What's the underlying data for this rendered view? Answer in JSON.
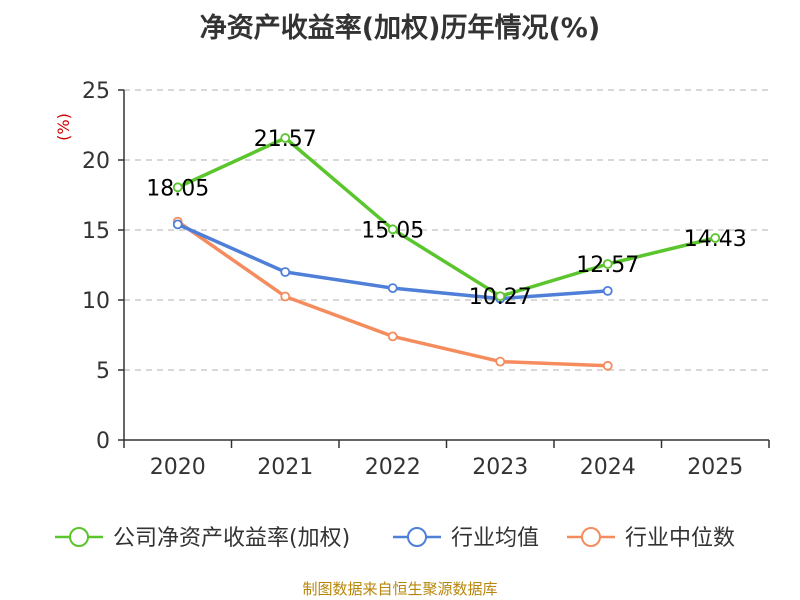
{
  "chart_data": {
    "type": "line",
    "title": "净资产收益率(加权)历年情况(%)",
    "ylabel": "(%)",
    "xlabel": "",
    "categories": [
      "2020",
      "2021",
      "2022",
      "2023",
      "2024",
      "2025"
    ],
    "ylim": [
      0,
      25
    ],
    "yticks": [
      0,
      5,
      10,
      15,
      20,
      25
    ],
    "grid": true,
    "legend_position": "bottom",
    "series": [
      {
        "name": "公司净资产收益率(加权)",
        "color": "#5ac52c",
        "values": [
          18.05,
          21.57,
          15.05,
          10.27,
          12.57,
          14.43
        ],
        "labels": [
          "18.05",
          "21.57",
          "15.05",
          "10.27",
          "12.57",
          "14.43"
        ]
      },
      {
        "name": "行业均值",
        "color": "#4f7fd8",
        "values": [
          15.4,
          12.0,
          10.85,
          10.1,
          10.65,
          null
        ]
      },
      {
        "name": "行业中位数",
        "color": "#f58c5e",
        "values": [
          15.6,
          10.25,
          7.4,
          5.6,
          5.3,
          null
        ]
      }
    ]
  },
  "source": "制图数据来自恒生聚源数据库"
}
